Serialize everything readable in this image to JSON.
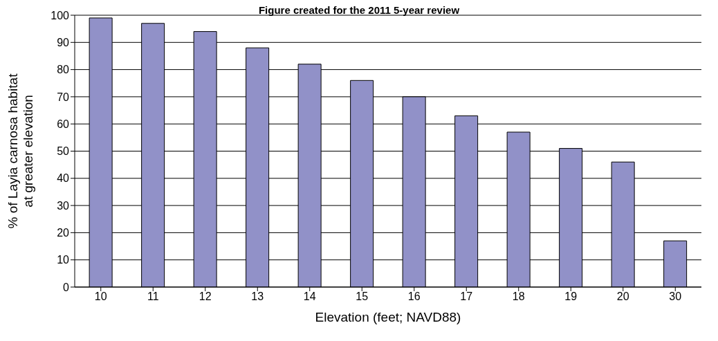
{
  "chart_data": {
    "type": "bar",
    "title": "Figure created for the 2011 5-year review",
    "xlabel": "Elevation (feet; NAVD88)",
    "ylabel": "% of Layia carnosa habitat\nat greater elevation",
    "categories": [
      "10",
      "11",
      "12",
      "13",
      "14",
      "15",
      "16",
      "17",
      "18",
      "19",
      "20",
      "30"
    ],
    "values": [
      99,
      97,
      94,
      88,
      82,
      76,
      70,
      63,
      57,
      51,
      46,
      17
    ],
    "color": "#9191c8",
    "ylim": [
      0,
      100
    ],
    "yticks": [
      0,
      10,
      20,
      30,
      40,
      50,
      60,
      70,
      80,
      90,
      100
    ],
    "grid": "y"
  }
}
